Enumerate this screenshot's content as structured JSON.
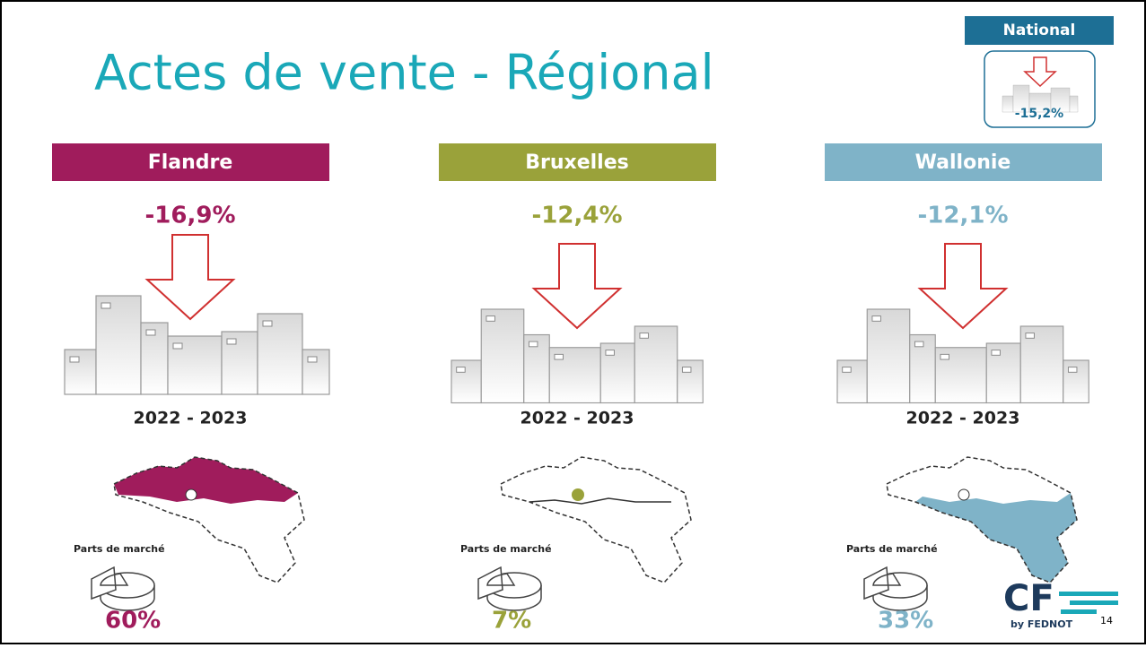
{
  "title": "Actes de vente - Régional",
  "national": {
    "label": "National",
    "change": "-15,2%"
  },
  "regions": [
    {
      "name": "Flandre",
      "color": "#a01c5c",
      "change": "-16,9%",
      "period": "2022 - 2023",
      "share_label": "Parts de marché",
      "share": "60%",
      "map_part": "north"
    },
    {
      "name": "Bruxelles",
      "color": "#9aa23a",
      "change": "-12,4%",
      "period": "2022 - 2023",
      "share_label": "Parts de marché",
      "share": "7%",
      "map_part": "center"
    },
    {
      "name": "Wallonie",
      "color": "#7fb3c8",
      "change": "-12,1%",
      "period": "2022 - 2023",
      "share_label": "Parts de marché",
      "share": "33%",
      "map_part": "south"
    }
  ],
  "logo": {
    "mark": "CF",
    "sub": "by FEDNOT"
  },
  "page_number": "14"
}
